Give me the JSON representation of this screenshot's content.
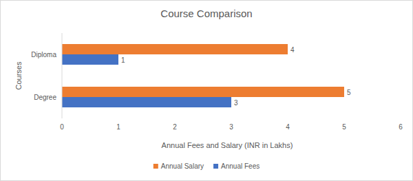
{
  "chart_data": {
    "type": "bar",
    "orientation": "horizontal",
    "title": "Course Comparison",
    "x_label": "Annual Fees and Salary (INR in Lakhs)",
    "y_label": "Courses",
    "categories": [
      "Degree",
      "Diploma"
    ],
    "series": [
      {
        "name": "Annual Salary",
        "color": "#ed7d31",
        "values": [
          5,
          4
        ]
      },
      {
        "name": "Annual Fees",
        "color": "#4472c4",
        "values": [
          3,
          1
        ]
      }
    ],
    "xlim": [
      0,
      6
    ],
    "xticks": [
      0,
      1,
      2,
      3,
      4,
      5,
      6
    ],
    "grid": false,
    "legend": "bottom",
    "data_labels": true
  }
}
